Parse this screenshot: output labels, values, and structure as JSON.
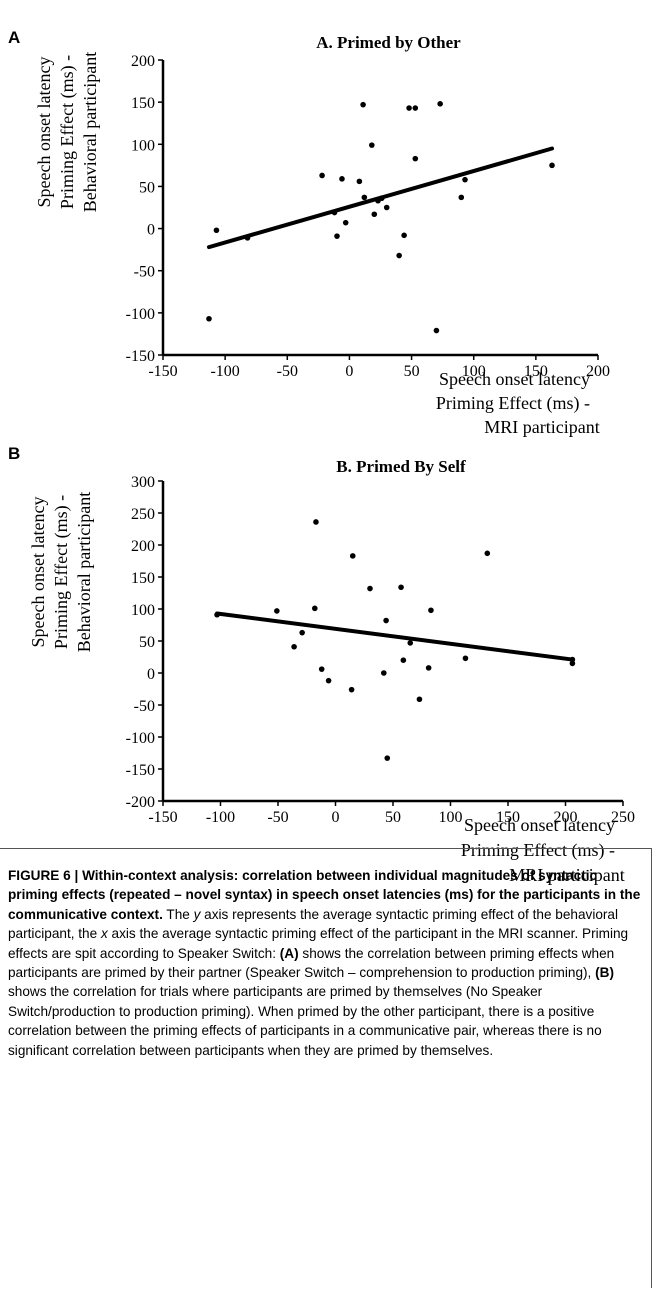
{
  "panels": [
    {
      "letter": "A",
      "chart_data": {
        "type": "scatter",
        "title": "A. Primed by Other",
        "ylabel_lines": [
          "Speech onset latency",
          "Priming Effect (ms) -",
          "Behavioral participant"
        ],
        "xlabel_lines": [
          "Speech onset latency",
          "Priming Effect (ms) -",
          "MRI participant"
        ],
        "xlim": [
          -150,
          200
        ],
        "ylim": [
          -150,
          200
        ],
        "xticks": [
          "-150",
          "-100",
          "-50",
          "0",
          "50",
          "100",
          "150",
          "200"
        ],
        "yticks": [
          "200",
          "150",
          "100",
          "50",
          "0",
          "-50",
          "-100",
          "-150"
        ],
        "x": [
          -113,
          -107,
          -82,
          -22,
          -12,
          -10,
          -6,
          -3,
          8,
          11,
          12,
          18,
          20,
          23,
          26,
          30,
          40,
          44,
          48,
          53,
          53,
          70,
          73,
          90,
          93,
          163
        ],
        "y": [
          -107,
          -2,
          -11,
          63,
          19,
          -9,
          59,
          7,
          56,
          147,
          37,
          99,
          17,
          33,
          36,
          25,
          -32,
          -8,
          143,
          83,
          143,
          -121,
          148,
          37,
          58,
          75
        ],
        "trendline": {
          "x": [
            -113,
            163
          ],
          "y": [
            -22,
            95
          ]
        }
      }
    },
    {
      "letter": "B",
      "chart_data": {
        "type": "scatter",
        "title": "B. Primed By Self",
        "ylabel_lines": [
          "Speech onset latency",
          "Priming Effect (ms) -",
          "Behavioral participant"
        ],
        "xlabel_lines": [
          "Speech onset latency",
          "Priming Effect (ms) -",
          "MRI participant"
        ],
        "xlim": [
          -150,
          250
        ],
        "ylim": [
          -200,
          300
        ],
        "xticks": [
          "-150",
          "-100",
          "-50",
          "0",
          "50",
          "100",
          "150",
          "200",
          "250"
        ],
        "yticks": [
          "300",
          "250",
          "200",
          "150",
          "100",
          "50",
          "0",
          "-50",
          "-100",
          "-150",
          "-200"
        ],
        "x": [
          -103,
          -51,
          -36,
          -29,
          -18,
          -17,
          -12,
          -6,
          14,
          15,
          30,
          42,
          44,
          45,
          57,
          59,
          65,
          73,
          81,
          83,
          113,
          132,
          206,
          206
        ],
        "y": [
          91,
          97,
          41,
          63,
          101,
          236,
          6,
          -12,
          -26,
          183,
          132,
          0,
          82,
          -133,
          134,
          20,
          47,
          -41,
          8,
          98,
          23,
          187,
          21,
          15
        ],
        "trendline": {
          "x": [
            -103,
            206
          ],
          "y": [
            93,
            21
          ]
        }
      }
    }
  ],
  "caption": {
    "figure_label": "FIGURE 6 |",
    "bold_title": "Within-context analysis: correlation between individual magnitudes of syntactic priming effects (repeated – novel syntax) in speech onset latencies (ms) for the participants in the communicative context.",
    "t1": "The ",
    "y_var": "y",
    "t2": " axis represents the average syntactic priming effect of the behavioral participant, the ",
    "x_var": "x",
    "t3": " axis the average syntactic priming effect of the participant in the MRI scanner. Priming effects are spit according to Speaker Switch: ",
    "ref_a": "(A)",
    "t4": " shows the correlation between priming effects when participants are primed by their partner (Speaker Switch – comprehension to production priming), ",
    "ref_b": "(B)",
    "t5": " shows the correlation for trials where participants are primed by themselves (No Speaker Switch/production to production priming). When primed by the other participant, there is a positive correlation between the priming effects of participants in a communicative pair, whereas there is no significant correlation between participants when they are primed by themselves."
  }
}
